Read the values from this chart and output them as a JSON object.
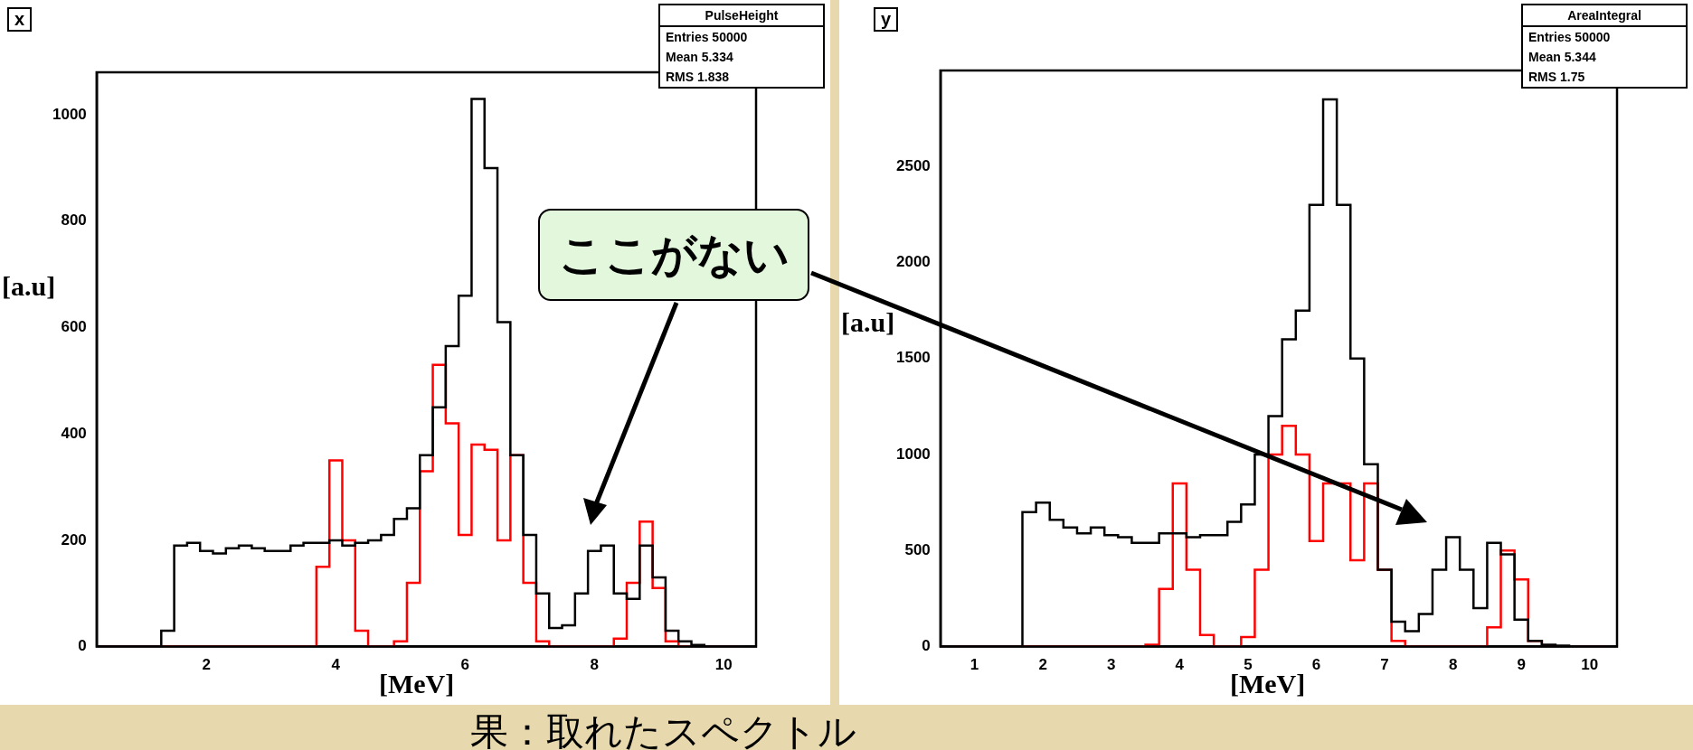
{
  "chart_data": [
    {
      "type": "histogram",
      "title": "x",
      "xlabel": "[MeV]",
      "ylabel": "[a.u]",
      "xlim": [
        0.3,
        10.5
      ],
      "ylim": [
        0,
        1080
      ],
      "xticks": [
        2,
        4,
        6,
        8,
        10
      ],
      "yticks": [
        0,
        200,
        400,
        600,
        800,
        1000
      ],
      "grid": false,
      "bins": [
        0.3,
        0.5,
        0.7,
        0.9,
        1.1,
        1.3,
        1.5,
        1.7,
        1.9,
        2.1,
        2.3,
        2.5,
        2.7,
        2.9,
        3.1,
        3.3,
        3.5,
        3.7,
        3.9,
        4.1,
        4.3,
        4.5,
        4.7,
        4.9,
        5.1,
        5.3,
        5.5,
        5.7,
        5.9,
        6.1,
        6.3,
        6.5,
        6.7,
        6.9,
        7.1,
        7.3,
        7.5,
        7.7,
        7.9,
        8.1,
        8.3,
        8.5,
        8.7,
        8.9,
        9.1,
        9.3,
        9.5,
        9.7,
        9.9,
        10.1,
        10.3
      ],
      "series": [
        {
          "color": "#000000",
          "values": [
            0,
            0,
            0,
            0,
            0,
            30,
            190,
            195,
            180,
            175,
            185,
            190,
            185,
            180,
            180,
            190,
            195,
            195,
            200,
            190,
            195,
            200,
            210,
            240,
            260,
            360,
            450,
            565,
            660,
            1030,
            900,
            610,
            360,
            210,
            100,
            35,
            40,
            100,
            180,
            190,
            100,
            90,
            190,
            130,
            30,
            10,
            3,
            0,
            0,
            0
          ]
        },
        {
          "color": "#ff0000",
          "values": [
            0,
            0,
            0,
            0,
            0,
            0,
            0,
            0,
            0,
            0,
            0,
            0,
            0,
            0,
            0,
            0,
            0,
            150,
            350,
            200,
            30,
            0,
            0,
            10,
            120,
            330,
            530,
            420,
            210,
            380,
            370,
            200,
            360,
            120,
            10,
            0,
            0,
            0,
            0,
            0,
            15,
            120,
            235,
            110,
            10,
            0,
            0,
            0,
            0,
            0
          ]
        }
      ],
      "annotations": [
        "PulseHeight",
        "Entries 50000",
        "Mean 5.334",
        "RMS 1.838",
        "ここがない",
        "果：取れたスペクトル"
      ]
    },
    {
      "type": "histogram",
      "title": "y",
      "xlabel": "[MeV]",
      "ylabel": "[a.u]",
      "xlim": [
        0.5,
        10.4
      ],
      "ylim": [
        0,
        3000
      ],
      "xticks": [
        1,
        2,
        3,
        4,
        5,
        6,
        7,
        8,
        9,
        10
      ],
      "yticks": [
        0,
        500,
        1000,
        1500,
        2000,
        2500
      ],
      "grid": false,
      "bins": [
        0.5,
        0.7,
        0.9,
        1.1,
        1.3,
        1.5,
        1.7,
        1.9,
        2.1,
        2.3,
        2.5,
        2.7,
        2.9,
        3.1,
        3.3,
        3.5,
        3.7,
        3.9,
        4.1,
        4.3,
        4.5,
        4.7,
        4.9,
        5.1,
        5.3,
        5.5,
        5.7,
        5.9,
        6.1,
        6.3,
        6.5,
        6.7,
        6.9,
        7.1,
        7.3,
        7.5,
        7.7,
        7.9,
        8.1,
        8.3,
        8.5,
        8.7,
        8.9,
        9.1,
        9.3,
        9.5,
        9.7,
        9.9,
        10.1,
        10.3
      ],
      "series": [
        {
          "color": "#000000",
          "values": [
            0,
            0,
            0,
            0,
            0,
            0,
            700,
            750,
            660,
            620,
            590,
            620,
            580,
            570,
            540,
            540,
            590,
            590,
            570,
            580,
            580,
            650,
            740,
            1000,
            1200,
            1600,
            1750,
            2300,
            2850,
            2300,
            1500,
            950,
            400,
            130,
            80,
            170,
            400,
            570,
            400,
            200,
            540,
            480,
            140,
            30,
            10,
            5,
            0,
            0,
            0
          ]
        },
        {
          "color": "#ff0000",
          "values": [
            0,
            0,
            0,
            0,
            0,
            0,
            0,
            0,
            0,
            0,
            0,
            0,
            0,
            0,
            0,
            10,
            300,
            850,
            400,
            60,
            0,
            0,
            50,
            400,
            1000,
            1150,
            1000,
            550,
            850,
            850,
            450,
            850,
            400,
            30,
            0,
            0,
            0,
            0,
            0,
            0,
            100,
            500,
            350,
            30,
            0,
            0,
            0,
            0,
            0
          ]
        }
      ],
      "annotations": [
        "AreaIntegral",
        "Entries 50000",
        "Mean 5.344",
        "RMS 1.75"
      ]
    }
  ]
}
